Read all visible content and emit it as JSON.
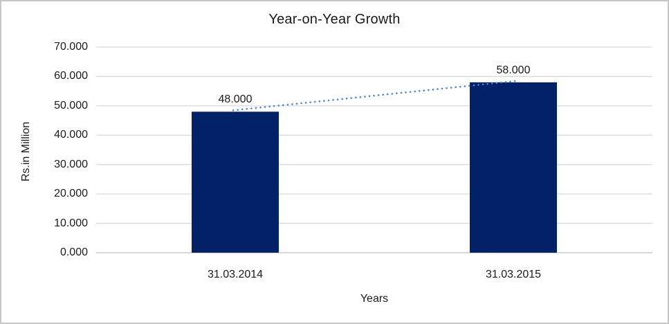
{
  "chart_data": {
    "type": "bar",
    "title": "Year-on-Year Growth",
    "xlabel": "Years",
    "ylabel": "Rs.in Million",
    "categories": [
      "31.03.2014",
      "31.03.2015"
    ],
    "values": [
      48.0,
      58.0
    ],
    "data_labels": [
      "48.000",
      "58.000"
    ],
    "y_ticks": [
      "70.000",
      "60.000",
      "50.000",
      "40.000",
      "30.000",
      "20.000",
      "10.000",
      "0.000"
    ],
    "ylim": [
      0,
      70
    ],
    "y_tick_step": 10,
    "grid": true,
    "legend": "none",
    "colors": {
      "bar": "#022166",
      "trendline": "#4E86C8",
      "gridline": "#d9d9d9",
      "axis_line": "#c0c0c0",
      "text": "#1a1a1a",
      "chart_border": "#c6c6c6",
      "background": "#ffffff"
    },
    "trendline": {
      "type": "linear",
      "style": "dotted",
      "spans": "category 1 to category 2"
    }
  }
}
